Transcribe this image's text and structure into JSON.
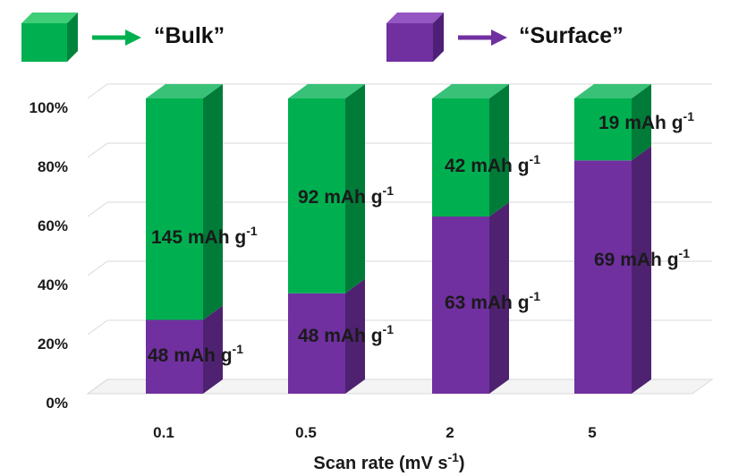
{
  "chart_data": {
    "type": "bar",
    "stacked": true,
    "three_d": true,
    "categories": [
      "0.1",
      "0.5",
      "2",
      "5"
    ],
    "series": [
      {
        "name": "“Surface”",
        "color": "#7030A0",
        "values": [
          25,
          34,
          60,
          79
        ],
        "labels": [
          "48 mAh g",
          "48 mAh g",
          "63 mAh g",
          "69 mAh g"
        ]
      },
      {
        "name": "“Bulk”",
        "color": "#00B050",
        "values": [
          75,
          66,
          40,
          21
        ],
        "labels": [
          "145 mAh g",
          "92 mAh g",
          "42 mAh g",
          "19 mAh g"
        ]
      }
    ],
    "label_superscript": "-1",
    "yticks": [
      "0%",
      "20%",
      "40%",
      "60%",
      "80%",
      "100%"
    ],
    "ylim": [
      0,
      100
    ],
    "xlabel": "Scan rate (mV s",
    "xlabel_superscript": "-1",
    "xlabel_suffix": ")",
    "grid": true,
    "legend_position": "top"
  }
}
